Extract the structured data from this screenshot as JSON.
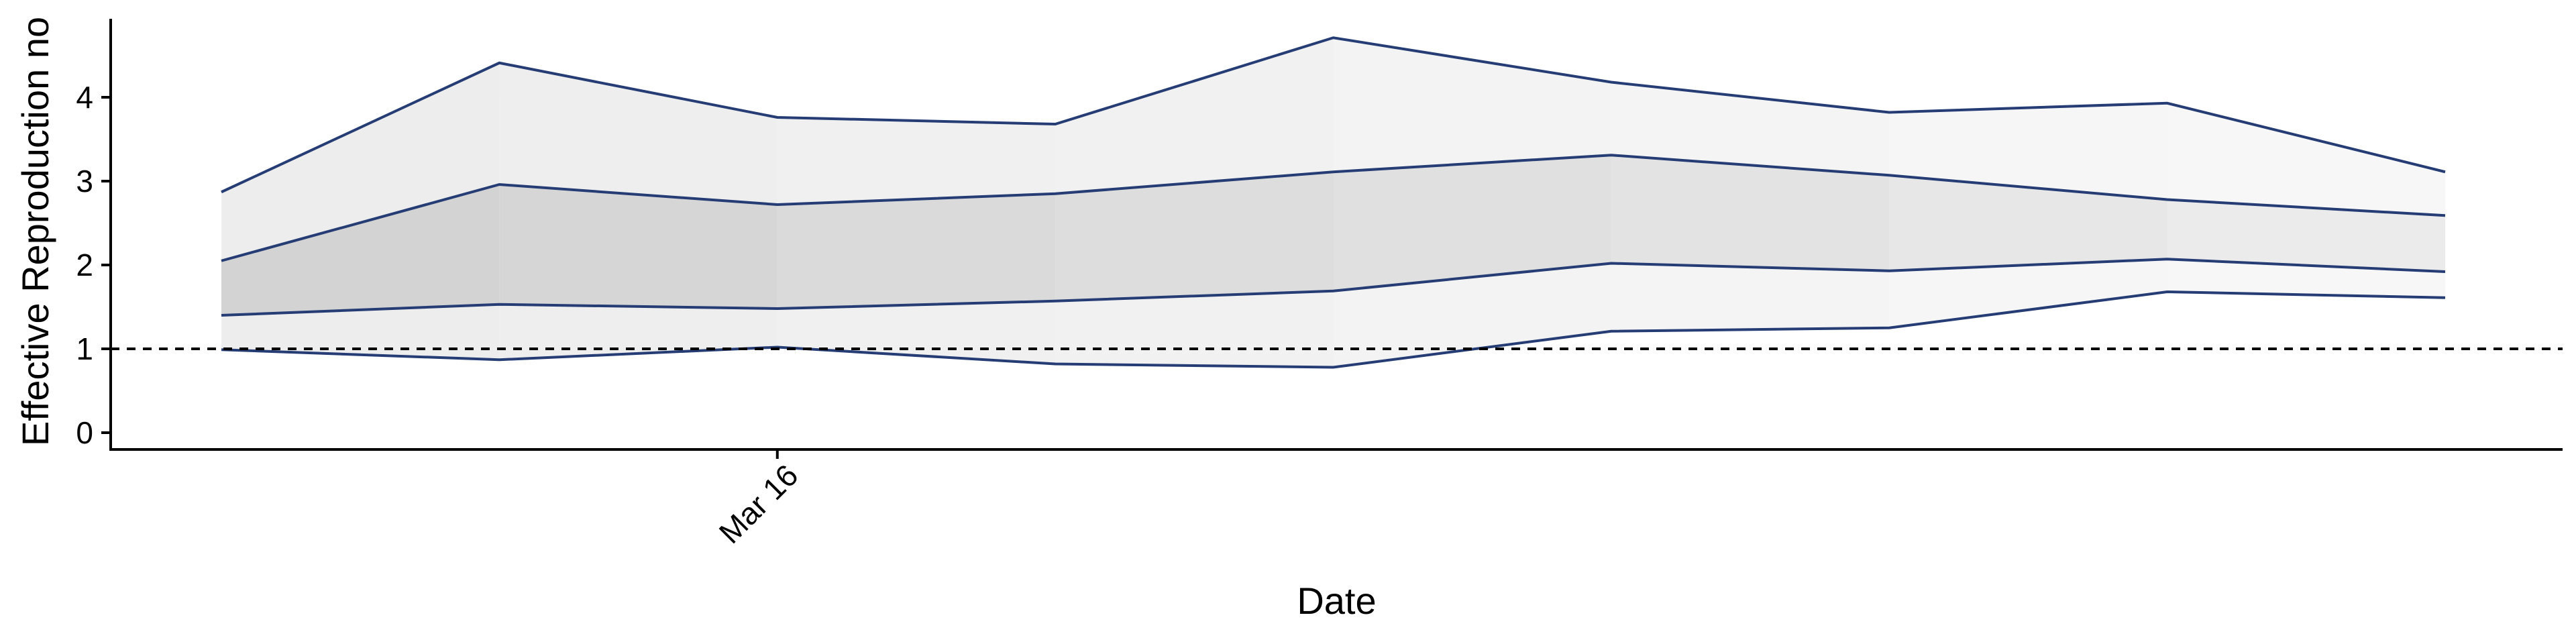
{
  "chart_data": {
    "type": "area",
    "title": "",
    "xlabel": "Date",
    "ylabel": "Effective Reproduction no",
    "x": [
      "Mar 14",
      "Mar 15",
      "Mar 16",
      "Mar 17",
      "Mar 18",
      "Mar 19",
      "Mar 20",
      "Mar 21",
      "Mar 22"
    ],
    "x_tick_labels": [
      "Mar 16"
    ],
    "ylim": [
      -0.2,
      5.0
    ],
    "y_ticks": [
      "0",
      "1",
      "2",
      "3",
      "4"
    ],
    "reference_line": {
      "y": 1,
      "style": "dashed"
    },
    "series": [
      {
        "values": [
          0.99,
          0.87,
          1.02,
          0.82,
          0.78,
          1.21,
          1.25,
          1.68,
          1.61
        ]
      },
      {
        "values": [
          1.4,
          1.53,
          1.48,
          1.57,
          1.69,
          2.02,
          1.93,
          2.07,
          1.92
        ]
      },
      {
        "values": [
          2.05,
          2.96,
          2.72,
          2.85,
          3.11,
          3.31,
          3.07,
          2.78,
          2.59
        ]
      },
      {
        "values": [
          2.87,
          4.41,
          3.76,
          3.68,
          4.71,
          4.18,
          3.82,
          3.93,
          3.11
        ]
      }
    ],
    "colors": {
      "line": "#253d74",
      "outer_band": "#ececec",
      "inner_band": "#d2d2d2",
      "reference": "#000000",
      "axis": "#000000"
    }
  }
}
